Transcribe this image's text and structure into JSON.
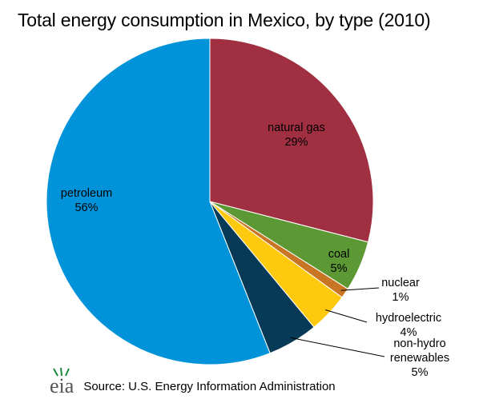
{
  "title": "Total energy consumption in Mexico, by type (2010)",
  "footer": {
    "logo_text": "eia",
    "source": "Source: U.S. Energy Information Administration"
  },
  "chart_data": {
    "type": "pie",
    "title": "Total energy consumption in Mexico, by type (2010)",
    "slices": [
      {
        "name": "natural gas",
        "label_lines": [
          "natural gas",
          "29%"
        ],
        "value": 29,
        "color": "#A03041"
      },
      {
        "name": "coal",
        "label_lines": [
          "coal",
          "5%"
        ],
        "value": 5,
        "color": "#5C9834"
      },
      {
        "name": "nuclear",
        "label_lines": [
          "nuclear",
          "1%"
        ],
        "value": 1,
        "color": "#C87524"
      },
      {
        "name": "hydroelectric",
        "label_lines": [
          "hydroelectric",
          "4%"
        ],
        "value": 4,
        "color": "#FFC90E"
      },
      {
        "name": "non-hydro renewables",
        "label_lines": [
          "non-hydro",
          "renewables",
          "5%"
        ],
        "value": 5,
        "color": "#063A57"
      },
      {
        "name": "petroleum",
        "label_lines": [
          "petroleum",
          "56%"
        ],
        "value": 56,
        "color": "#0093D9"
      }
    ]
  }
}
